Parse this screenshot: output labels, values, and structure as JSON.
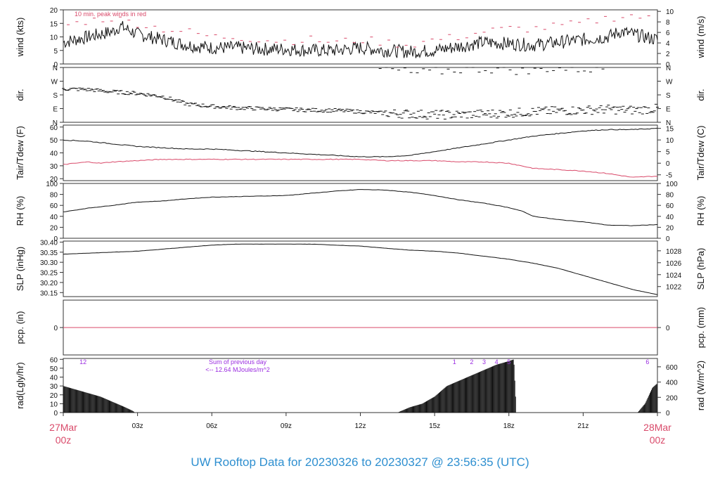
{
  "title": "UW Rooftop Data for 20230326  to  20230327 @ 23:56:35  (UTC)",
  "colors": {
    "trace": "#111111",
    "red": "#d94a6a",
    "purple": "#9b2de0",
    "title": "#2e8fd0"
  },
  "x_axis": {
    "start_label": [
      "27Mar",
      "00z"
    ],
    "end_label": [
      "28Mar",
      "00z"
    ],
    "ticks": [
      {
        "hour": 3,
        "label": "03z"
      },
      {
        "hour": 6,
        "label": "06z"
      },
      {
        "hour": 9,
        "label": "09z"
      },
      {
        "hour": 12,
        "label": "12z"
      },
      {
        "hour": 15,
        "label": "15z"
      },
      {
        "hour": 18,
        "label": "18z"
      },
      {
        "hour": 21,
        "label": "21z"
      }
    ]
  },
  "chart_data": [
    {
      "id": "wind",
      "type": "line",
      "ylabel": "wind (kts)",
      "ylabel_right": "wind (m/s)",
      "ylim": [
        0,
        20
      ],
      "yticks": [
        0,
        5,
        10,
        15,
        20
      ],
      "right_ylim": [
        0,
        10.29
      ],
      "right_yticks": [
        0,
        2,
        4,
        6,
        8,
        10
      ],
      "annotation": "10 min. peak winds in red",
      "series": [
        {
          "role": "wind speed",
          "x": [
            0,
            1,
            2,
            2.3,
            3,
            4,
            5,
            6,
            7,
            8,
            9,
            10,
            11,
            12,
            13,
            14,
            15,
            16,
            17,
            18,
            19,
            20,
            21,
            22,
            22.5,
            23,
            24
          ],
          "y": [
            8,
            10,
            12,
            14,
            11,
            9,
            7,
            6,
            6,
            5.5,
            5.5,
            5,
            5,
            6,
            5,
            4.5,
            5,
            6.5,
            8,
            7.5,
            7,
            8,
            9,
            10,
            12,
            11,
            9
          ]
        },
        {
          "role": "10 min peak",
          "x": [
            0,
            1,
            2,
            3,
            4,
            5,
            6,
            7,
            8,
            9,
            10,
            11,
            12,
            13,
            14,
            15,
            16,
            17,
            18,
            19,
            20,
            21,
            22,
            23,
            24
          ],
          "y": [
            14,
            16,
            17,
            15,
            13,
            12,
            10,
            10,
            9,
            8.5,
            9,
            8,
            9,
            8,
            7,
            9,
            10,
            12,
            13,
            13,
            14,
            15,
            17,
            18,
            16
          ]
        }
      ]
    },
    {
      "id": "dir",
      "type": "scatter",
      "ylabel": "dir.",
      "ylabel_right": "dir.",
      "ylim": [
        0,
        360
      ],
      "ytick_labels": [
        "N",
        "E",
        "S",
        "W",
        "N"
      ],
      "yticks": [
        0,
        90,
        180,
        270,
        360
      ],
      "series": [
        {
          "role": "wind direction",
          "x": [
            0,
            1,
            2,
            3,
            4,
            5,
            6,
            7,
            8,
            9,
            10,
            11,
            12,
            13,
            14,
            15,
            16,
            17,
            18,
            19,
            20,
            21,
            22,
            23,
            24
          ],
          "y": [
            220,
            215,
            200,
            190,
            170,
            120,
            105,
            95,
            90,
            85,
            80,
            78,
            70,
            60,
            55,
            50,
            50,
            55,
            60,
            70,
            75,
            80,
            85,
            80,
            90
          ]
        },
        {
          "role": "north wraparound",
          "x": [
            12.8,
            13.5,
            14.2,
            16.5,
            17.2,
            18,
            18.8,
            19.5,
            21,
            22
          ],
          "y": [
            350,
            340,
            320,
            355,
            350,
            350,
            330,
            355,
            350,
            355
          ]
        }
      ]
    },
    {
      "id": "temp",
      "type": "line",
      "ylabel": "Tair/Tdew (F)",
      "ylabel_right": "Tair/Tdew (C)",
      "ylim": [
        18.5,
        61.5
      ],
      "yticks": [
        20,
        30,
        40,
        50,
        60
      ],
      "right_ytick_values": [
        -5,
        0,
        5,
        10,
        15
      ],
      "series": [
        {
          "role": "air temperature",
          "x": [
            0,
            1,
            2,
            3,
            4,
            5,
            6,
            7,
            8,
            9,
            10,
            11,
            12,
            13,
            14,
            15,
            16,
            17,
            18,
            19,
            20,
            21,
            22,
            23,
            24
          ],
          "y": [
            50,
            49,
            47,
            45,
            44,
            43,
            43,
            42,
            41,
            40,
            39,
            38,
            37,
            37,
            38,
            41,
            44,
            47,
            50,
            53,
            55,
            57,
            58,
            58,
            59
          ]
        },
        {
          "role": "dew point",
          "x": [
            0,
            1,
            1.5,
            2,
            3,
            4,
            5,
            6,
            7,
            8,
            9,
            10,
            11,
            12,
            13,
            14,
            15,
            16,
            17,
            18,
            18.5,
            19,
            20,
            21,
            22,
            23,
            24
          ],
          "y": [
            31,
            33,
            32,
            33,
            34,
            35,
            35,
            35,
            35,
            35,
            35,
            35,
            35,
            35,
            34,
            34,
            34,
            33,
            33,
            32,
            30,
            28,
            27,
            26,
            24,
            21,
            22
          ]
        }
      ]
    },
    {
      "id": "rh",
      "type": "line",
      "ylabel": "RH (%)",
      "ylabel_right": "RH (%)",
      "ylim": [
        0,
        100
      ],
      "yticks": [
        0,
        20,
        40,
        60,
        80,
        100
      ],
      "series": [
        {
          "role": "relative humidity",
          "x": [
            0,
            1,
            2,
            3,
            4,
            5,
            6,
            7,
            8,
            9,
            10,
            11,
            12,
            13,
            14,
            15,
            16,
            17,
            18,
            18.5,
            19,
            20,
            21,
            22,
            23,
            24
          ],
          "y": [
            48,
            55,
            60,
            66,
            68,
            72,
            75,
            76,
            77,
            78,
            82,
            86,
            89,
            88,
            84,
            78,
            70,
            64,
            56,
            50,
            40,
            34,
            30,
            24,
            23,
            25
          ]
        }
      ]
    },
    {
      "id": "slp",
      "type": "line",
      "ylabel": "SLP (inHg)",
      "ylabel_right": "SLP (hPa)",
      "ylim": [
        30.13,
        30.405
      ],
      "yticks": [
        30.15,
        30.2,
        30.25,
        30.3,
        30.35,
        30.4
      ],
      "right_ytick_values": [
        1022,
        1024,
        1026,
        1028
      ],
      "series": [
        {
          "role": "sea level pressure",
          "x": [
            0,
            1,
            2,
            3,
            4,
            5,
            6,
            7,
            8,
            9,
            10,
            11,
            12,
            13,
            14,
            15,
            16,
            17,
            18,
            19,
            20,
            21,
            22,
            23,
            24
          ],
          "y": [
            30.34,
            30.345,
            30.35,
            30.355,
            30.365,
            30.375,
            30.385,
            30.39,
            30.39,
            30.39,
            30.39,
            30.385,
            30.38,
            30.37,
            30.36,
            30.355,
            30.345,
            30.33,
            30.315,
            30.295,
            30.27,
            30.235,
            30.2,
            30.165,
            30.14
          ]
        }
      ]
    },
    {
      "id": "pcp",
      "type": "line",
      "ylabel": "pcp. (in)",
      "ylabel_right": "pcp. (mm)",
      "ylim": [
        -0.1,
        0.1
      ],
      "yticks": [
        0
      ],
      "right_ytick_values": [
        0
      ],
      "series": [
        {
          "role": "precipitation",
          "x": [
            0,
            24
          ],
          "y": [
            0,
            0
          ]
        }
      ]
    },
    {
      "id": "rad",
      "type": "area",
      "ylabel": "rad(Lgly/hr)",
      "ylabel_right": "rad (W/m^2)",
      "ylim": [
        0,
        61
      ],
      "yticks": [
        0,
        10,
        20,
        30,
        40,
        50,
        60
      ],
      "right_ytick_values": [
        0,
        200,
        400,
        600
      ],
      "annotations": [
        "12",
        "Sum of previous day",
        "<-- 12.64 MJoules/m^2",
        "1",
        "2",
        "3",
        "4",
        "5",
        "6"
      ],
      "hour_marks": [
        {
          "hour": 0.8,
          "label": "12"
        },
        {
          "hour": 15.8,
          "label": "1"
        },
        {
          "hour": 16.5,
          "label": "2"
        },
        {
          "hour": 17,
          "label": "3"
        },
        {
          "hour": 17.5,
          "label": "4"
        },
        {
          "hour": 18,
          "label": "5"
        },
        {
          "hour": 23.6,
          "label": "6"
        }
      ],
      "series": [
        {
          "role": "solar radiation",
          "x": [
            0,
            0.5,
            1,
            1.5,
            2,
            2.5,
            2.8,
            2.9,
            13.5,
            14,
            14.5,
            15,
            15.5,
            16,
            16.5,
            17,
            17.5,
            18,
            18.2,
            18.3,
            23.2,
            23.5,
            23.8,
            24
          ],
          "y": [
            30,
            26,
            22,
            18,
            12,
            6,
            2,
            0,
            0,
            6,
            10,
            18,
            30,
            36,
            42,
            48,
            54,
            58,
            60,
            0,
            0,
            10,
            28,
            33
          ]
        }
      ]
    }
  ]
}
